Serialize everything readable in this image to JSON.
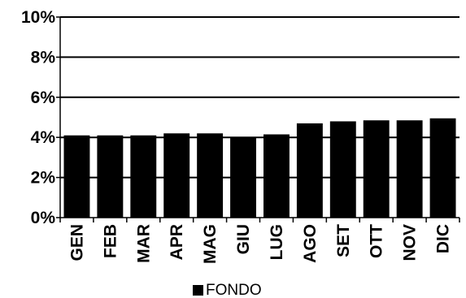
{
  "chart_data": {
    "type": "bar",
    "categories": [
      "GEN",
      "FEB",
      "MAR",
      "APR",
      "MAG",
      "GIU",
      "LUG",
      "AGO",
      "SET",
      "OTT",
      "NOV",
      "DIC"
    ],
    "series": [
      {
        "name": "FONDO",
        "values": [
          4.1,
          4.1,
          4.1,
          4.2,
          4.2,
          4.0,
          4.15,
          4.7,
          4.8,
          4.85,
          4.85,
          4.95
        ],
        "color": "#000000"
      }
    ],
    "ylim": [
      0,
      10
    ],
    "yticks": [
      0,
      2,
      4,
      6,
      8,
      10
    ],
    "ytick_labels": [
      "0%",
      "2%",
      "4%",
      "6%",
      "8%",
      "10%"
    ],
    "grid": true,
    "legend_position": "bottom",
    "title": "",
    "xlabel": "",
    "ylabel": ""
  }
}
